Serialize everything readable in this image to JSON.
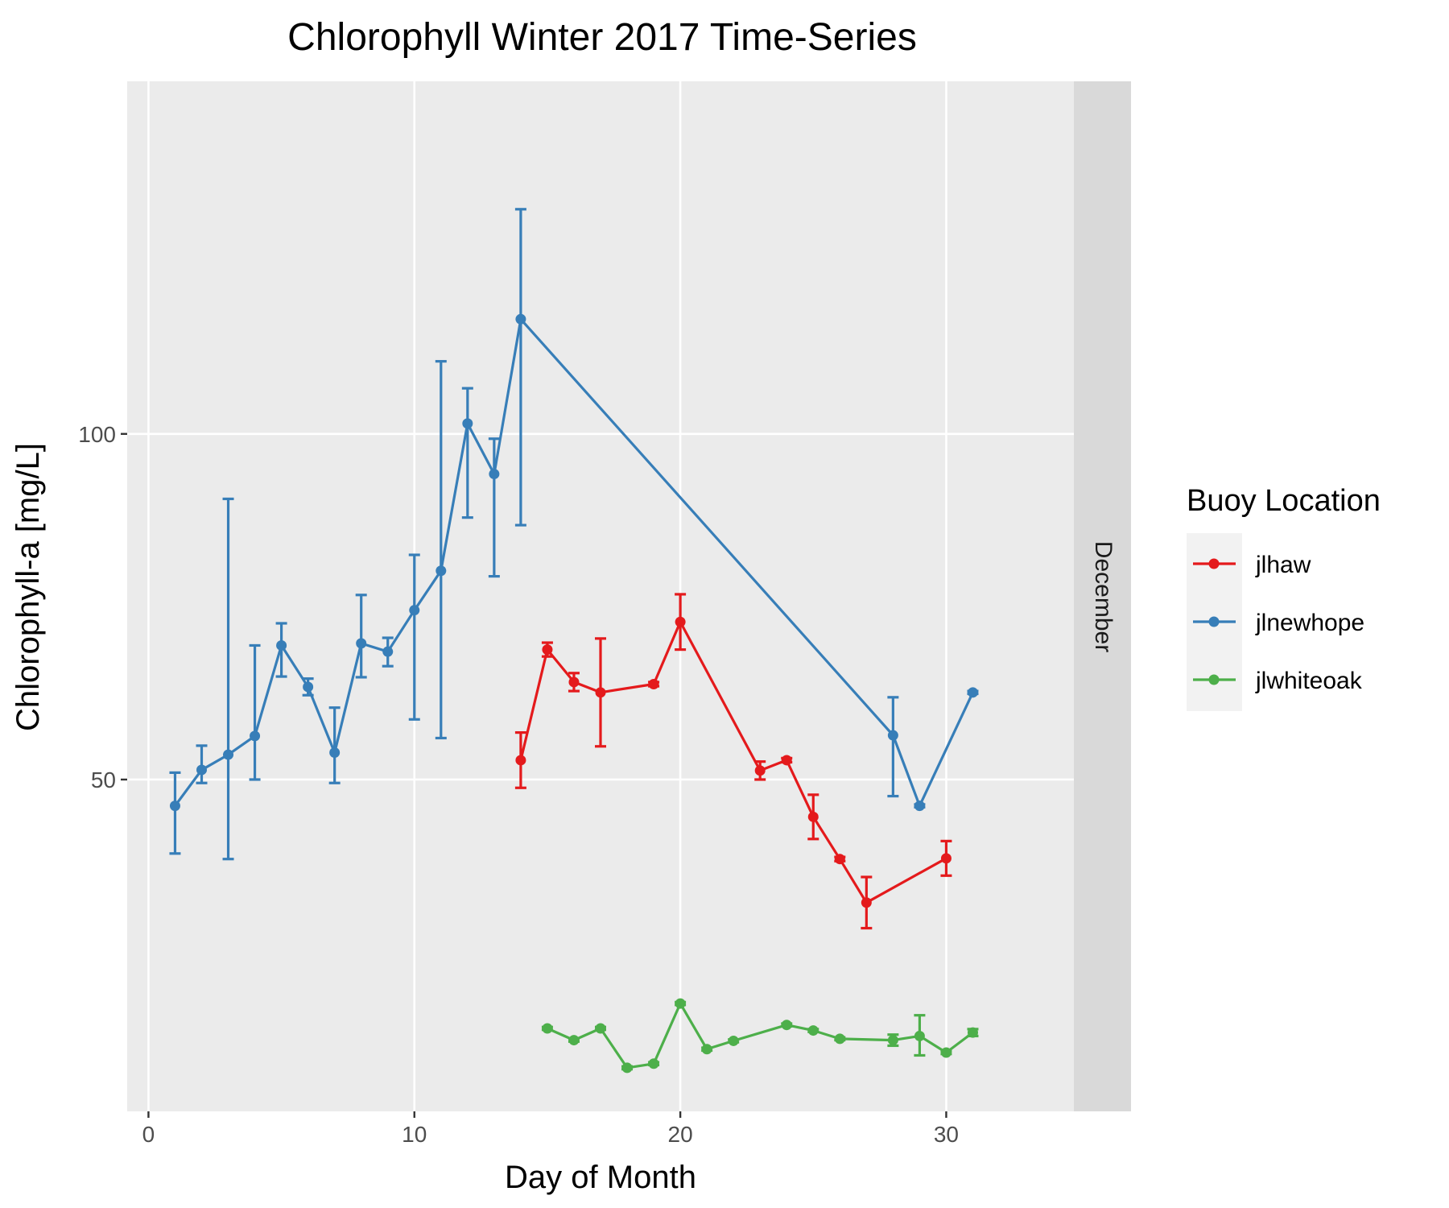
{
  "chart_data": {
    "type": "line",
    "title": "Chlorophyll Winter 2017 Time-Series",
    "xlabel": "Day of Month",
    "ylabel": "Chlorophyll-a [mg/L]",
    "facet_label": "December",
    "xlim": [
      -0.8,
      34.8
    ],
    "ylim": [
      2,
      151
    ],
    "x_ticks": [
      0,
      10,
      20,
      30
    ],
    "y_ticks": [
      50,
      100
    ],
    "legend": {
      "title": "Buoy Location",
      "position": "right"
    },
    "grid": true,
    "error_bars": true,
    "series": [
      {
        "name": "jlhaw",
        "color": "#e41a1c",
        "points": [
          {
            "x": 14,
            "y": 52.8,
            "lo": 48.8,
            "hi": 56.8
          },
          {
            "x": 15,
            "y": 68.8,
            "lo": 67.8,
            "hi": 69.8
          },
          {
            "x": 16,
            "y": 64.1,
            "lo": 62.8,
            "hi": 65.4
          },
          {
            "x": 17,
            "y": 62.6,
            "lo": 54.8,
            "hi": 70.4
          },
          {
            "x": 19,
            "y": 63.8,
            "lo": 63.5,
            "hi": 64.1
          },
          {
            "x": 20,
            "y": 72.8,
            "lo": 68.8,
            "hi": 76.8
          },
          {
            "x": 23,
            "y": 51.3,
            "lo": 50.0,
            "hi": 52.6
          },
          {
            "x": 24,
            "y": 52.8,
            "lo": 52.5,
            "hi": 53.1
          },
          {
            "x": 25,
            "y": 44.6,
            "lo": 41.4,
            "hi": 47.8
          },
          {
            "x": 26,
            "y": 38.5,
            "lo": 38.2,
            "hi": 38.8
          },
          {
            "x": 27,
            "y": 32.2,
            "lo": 28.5,
            "hi": 35.9
          },
          {
            "x": 30,
            "y": 38.6,
            "lo": 36.1,
            "hi": 41.1
          }
        ]
      },
      {
        "name": "jlnewhope",
        "color": "#377eb8",
        "points": [
          {
            "x": 1,
            "y": 46.2,
            "lo": 39.3,
            "hi": 51.0
          },
          {
            "x": 2,
            "y": 51.4,
            "lo": 49.5,
            "hi": 54.9
          },
          {
            "x": 3,
            "y": 53.6,
            "lo": 38.5,
            "hi": 90.6
          },
          {
            "x": 4,
            "y": 56.3,
            "lo": 50.0,
            "hi": 69.4
          },
          {
            "x": 5,
            "y": 69.4,
            "lo": 64.9,
            "hi": 72.6
          },
          {
            "x": 6,
            "y": 63.4,
            "lo": 62.2,
            "hi": 64.6
          },
          {
            "x": 7,
            "y": 53.9,
            "lo": 49.5,
            "hi": 60.4
          },
          {
            "x": 8,
            "y": 69.7,
            "lo": 64.8,
            "hi": 76.7
          },
          {
            "x": 9,
            "y": 68.5,
            "lo": 66.4,
            "hi": 70.5
          },
          {
            "x": 10,
            "y": 74.5,
            "lo": 58.7,
            "hi": 82.5
          },
          {
            "x": 11,
            "y": 80.2,
            "lo": 56.0,
            "hi": 110.5
          },
          {
            "x": 12,
            "y": 101.5,
            "lo": 87.9,
            "hi": 106.6
          },
          {
            "x": 13,
            "y": 94.2,
            "lo": 79.4,
            "hi": 99.3
          },
          {
            "x": 14,
            "y": 116.6,
            "lo": 86.8,
            "hi": 132.5
          },
          {
            "x": 28,
            "y": 56.4,
            "lo": 47.6,
            "hi": 61.9
          },
          {
            "x": 29,
            "y": 46.2,
            "lo": 46.0,
            "hi": 46.4
          },
          {
            "x": 31,
            "y": 62.6,
            "lo": 62.4,
            "hi": 62.8
          }
        ]
      },
      {
        "name": "jlwhiteoak",
        "color": "#4daf4a",
        "points": [
          {
            "x": 15,
            "y": 14.0,
            "lo": 13.8,
            "hi": 14.2
          },
          {
            "x": 16,
            "y": 12.3,
            "lo": 12.1,
            "hi": 12.5
          },
          {
            "x": 17,
            "y": 14.0,
            "lo": 13.8,
            "hi": 14.2
          },
          {
            "x": 18,
            "y": 8.3,
            "lo": 8.1,
            "hi": 8.5
          },
          {
            "x": 19,
            "y": 8.9,
            "lo": 8.7,
            "hi": 9.1
          },
          {
            "x": 20,
            "y": 17.6,
            "lo": 17.4,
            "hi": 17.8
          },
          {
            "x": 21,
            "y": 11.0,
            "lo": 10.8,
            "hi": 11.2
          },
          {
            "x": 22,
            "y": 12.2,
            "lo": 12.0,
            "hi": 12.4
          },
          {
            "x": 24,
            "y": 14.5,
            "lo": 14.3,
            "hi": 14.7
          },
          {
            "x": 25,
            "y": 13.7,
            "lo": 13.5,
            "hi": 13.9
          },
          {
            "x": 26,
            "y": 12.5,
            "lo": 12.3,
            "hi": 12.7
          },
          {
            "x": 28,
            "y": 12.3,
            "lo": 11.5,
            "hi": 13.1
          },
          {
            "x": 29,
            "y": 12.9,
            "lo": 10.1,
            "hi": 15.9
          },
          {
            "x": 30,
            "y": 10.5,
            "lo": 10.3,
            "hi": 10.7
          },
          {
            "x": 31,
            "y": 13.4,
            "lo": 12.9,
            "hi": 13.9
          }
        ]
      }
    ]
  }
}
